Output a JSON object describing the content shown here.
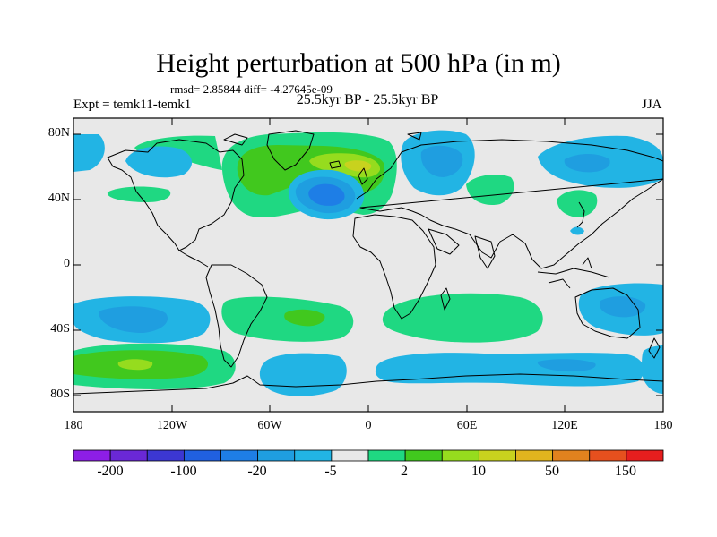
{
  "title": "Height perturbation at 500 hPa (in m)",
  "stats": "rmsd= 2.85844 diff= -4.27645e-09",
  "experiment": "Expt = temk11-temk1",
  "period": "25.5kyr BP - 25.5kyr BP",
  "season": "JJA",
  "map": {
    "lon_range": [
      -180,
      180
    ],
    "lat_range": [
      -90,
      90
    ],
    "y_ticks": [
      "80N",
      "40N",
      "0",
      "40S",
      "80S"
    ],
    "x_ticks": [
      "180",
      "120W",
      "60W",
      "0",
      "60E",
      "120E",
      "180"
    ]
  },
  "colorbar": {
    "colors": [
      "#8d1ee6",
      "#6a28d6",
      "#3c37d2",
      "#2060e0",
      "#1e7ee6",
      "#1f9ee0",
      "#22b4e4",
      "#e8e8e8",
      "#1fd882",
      "#41c81e",
      "#96dc1e",
      "#c8d21e",
      "#e1b41e",
      "#e1821e",
      "#e6501e",
      "#e61e1e"
    ],
    "labels": [
      "-200",
      "-100",
      "-20",
      "-5",
      "2",
      "10",
      "50",
      "150"
    ]
  },
  "colors": {
    "background": "#e8e8e8",
    "coast": "#000000"
  }
}
